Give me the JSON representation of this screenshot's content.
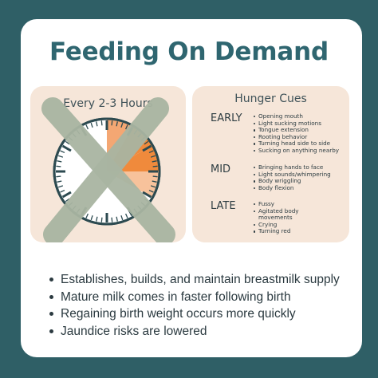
{
  "title": "Feeding On Demand",
  "left_panel": {
    "title": "Every 2-3 Hours",
    "clock_icon": "clock-icon",
    "crossed_out_icon": "x-mark-icon"
  },
  "right_panel": {
    "title": "Hunger Cues",
    "groups": [
      {
        "label": "EARLY",
        "items": [
          "Opening mouth",
          "Light sucking motions",
          "Tongue extension",
          "Rooting behavior",
          "Turning head side to side",
          "Sucking on anything nearby"
        ]
      },
      {
        "label": "MID",
        "items": [
          "Bringing hands to face",
          "Light sounds/whimpering",
          "Body wriggling",
          "Body flexion"
        ]
      },
      {
        "label": "LATE",
        "items": [
          "Fussy",
          "Agitated body",
          "movements",
          "Crying",
          "Turning red"
        ]
      }
    ]
  },
  "bullets": [
    "Establishes, builds, and maintain breastmilk supply",
    "Mature milk comes in faster following birth",
    "Regaining birth weight occurs more quickly",
    "Jaundice risks are lowered"
  ],
  "colors": {
    "background": "#2f5f66",
    "title": "#2f6670",
    "panel": "#f6e6d9",
    "clock_dark_orange": "#f08a3c",
    "clock_light_orange": "#f7c29b",
    "x_mark": "#a9b5a2"
  }
}
